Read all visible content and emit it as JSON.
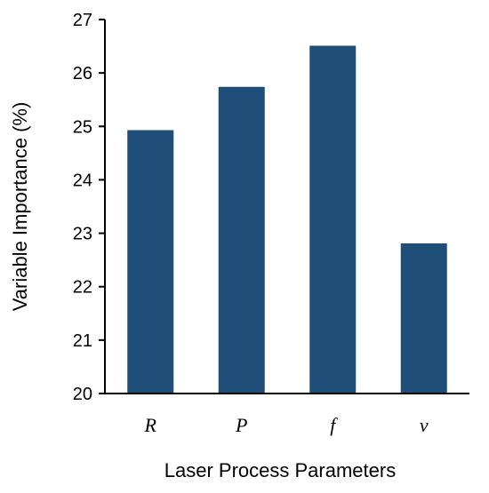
{
  "chart_data": {
    "type": "bar",
    "title": "",
    "xlabel": "Laser Process Parameters",
    "ylabel": "Variable Importance (%)",
    "categories": [
      "R",
      "P",
      "f",
      "v"
    ],
    "series": [
      {
        "values": [
          24.93,
          25.74,
          26.51,
          22.81
        ]
      }
    ],
    "ylim": [
      20,
      27
    ],
    "yticks": [
      20,
      21,
      22,
      23,
      24,
      25,
      26,
      27
    ],
    "grid": false,
    "legend": "none",
    "bar_color": "#1f4e79"
  }
}
